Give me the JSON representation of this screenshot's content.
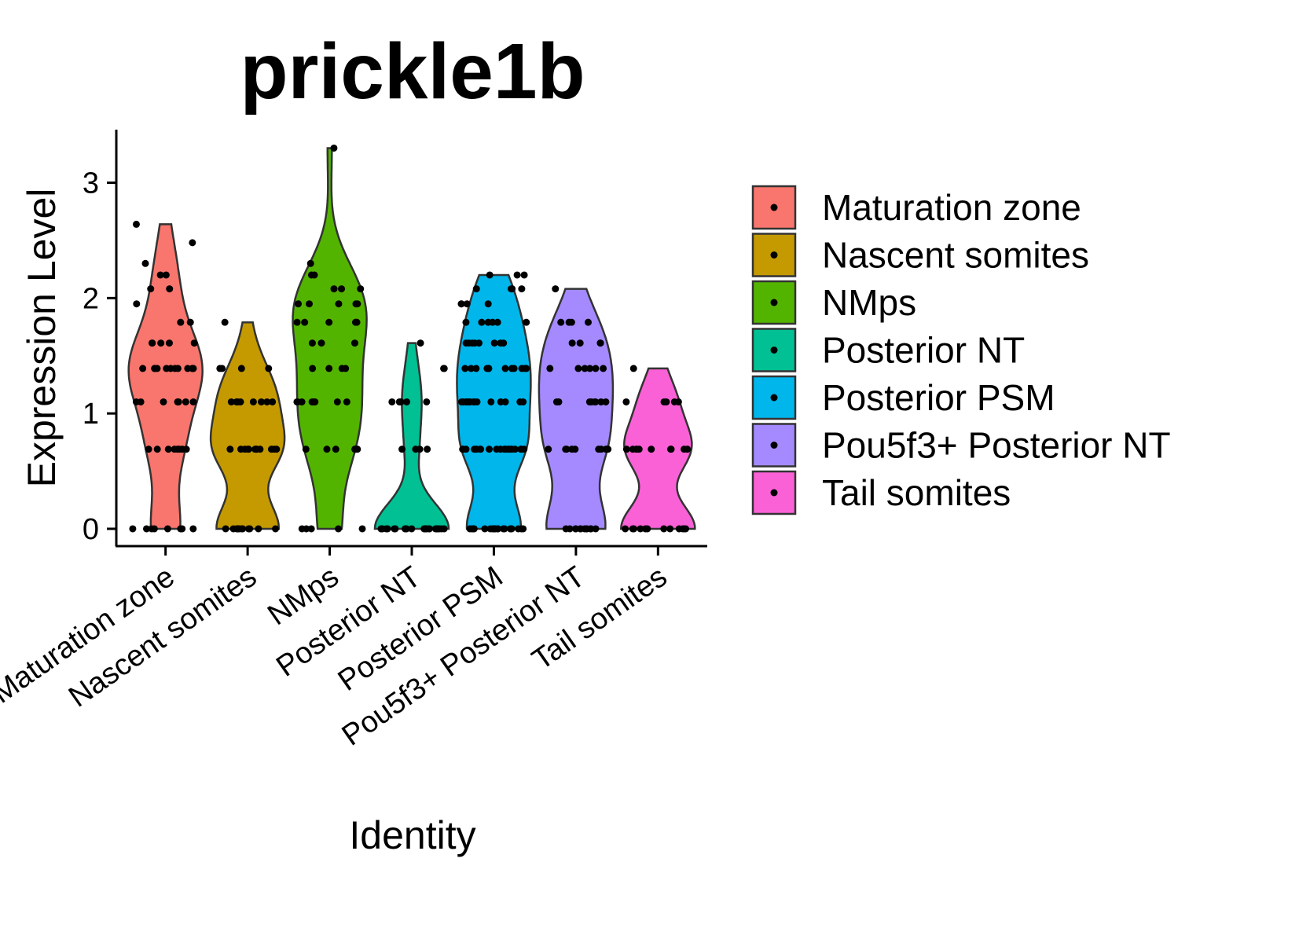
{
  "chart_data": {
    "type": "violin",
    "title": "prickle1b",
    "x_label": "Identity",
    "y_label": "Expression Level",
    "ylim": [
      -0.15,
      3.46
    ],
    "yticks": [
      0,
      1,
      2,
      3
    ],
    "legend": "right",
    "series": [
      {
        "name": "Maturation zone",
        "color": "#F8766D",
        "values": [
          0,
          0,
          0,
          0,
          0,
          0,
          0,
          0,
          0.69,
          0.69,
          0.69,
          0.69,
          0.69,
          0.69,
          0.69,
          0.69,
          1.1,
          1.1,
          1.1,
          1.1,
          1.1,
          1.1,
          1.1,
          1.39,
          1.39,
          1.39,
          1.39,
          1.39,
          1.39,
          1.39,
          1.39,
          1.39,
          1.39,
          1.39,
          1.39,
          1.61,
          1.61,
          1.61,
          1.61,
          1.61,
          1.79,
          1.79,
          1.95,
          2.08,
          2.08,
          2.2,
          2.2,
          2.3,
          2.48,
          2.64
        ]
      },
      {
        "name": "Nascent somites",
        "color": "#C49A00",
        "values": [
          0,
          0,
          0,
          0,
          0,
          0,
          0,
          0,
          0,
          0,
          0,
          0,
          0.69,
          0.69,
          0.69,
          0.69,
          0.69,
          0.69,
          0.69,
          0.69,
          0.69,
          0.69,
          0.69,
          0.69,
          1.1,
          1.1,
          1.1,
          1.1,
          1.1,
          1.1,
          1.1,
          1.1,
          1.39,
          1.39,
          1.39,
          1.39,
          1.79
        ]
      },
      {
        "name": "NMps",
        "color": "#53B400",
        "values": [
          0,
          0,
          0,
          0,
          0,
          0.69,
          0.69,
          0.69,
          0.69,
          0.69,
          0.69,
          0.69,
          0.69,
          1.1,
          1.1,
          1.1,
          1.1,
          1.1,
          1.1,
          1.1,
          1.1,
          1.39,
          1.39,
          1.39,
          1.39,
          1.61,
          1.61,
          1.61,
          1.79,
          1.79,
          1.79,
          1.79,
          1.79,
          1.95,
          1.95,
          1.95,
          1.95,
          1.95,
          2.08,
          2.08,
          2.08,
          2.2,
          2.2,
          2.3,
          3.3
        ]
      },
      {
        "name": "Posterior NT",
        "color": "#00C094",
        "values": [
          0,
          0,
          0,
          0,
          0,
          0,
          0,
          0,
          0,
          0,
          0,
          0,
          0,
          0,
          0,
          0,
          0,
          0,
          0,
          0,
          0,
          0,
          0,
          0,
          0,
          0.69,
          0.69,
          0.69,
          0.69,
          1.1,
          1.1,
          1.1,
          1.1,
          1.1,
          1.39,
          1.39,
          1.61
        ]
      },
      {
        "name": "Posterior PSM",
        "color": "#00B6EB",
        "values": [
          0,
          0,
          0,
          0,
          0,
          0,
          0,
          0,
          0,
          0,
          0,
          0,
          0,
          0,
          0,
          0,
          0,
          0,
          0,
          0,
          0.69,
          0.69,
          0.69,
          0.69,
          0.69,
          0.69,
          0.69,
          0.69,
          0.69,
          0.69,
          0.69,
          0.69,
          0.69,
          0.69,
          0.69,
          0.69,
          0.69,
          0.69,
          0.69,
          0.69,
          1.1,
          1.1,
          1.1,
          1.1,
          1.1,
          1.1,
          1.1,
          1.1,
          1.1,
          1.1,
          1.1,
          1.1,
          1.1,
          1.1,
          1.1,
          1.39,
          1.39,
          1.39,
          1.39,
          1.39,
          1.39,
          1.39,
          1.39,
          1.39,
          1.39,
          1.39,
          1.39,
          1.61,
          1.61,
          1.61,
          1.61,
          1.61,
          1.61,
          1.61,
          1.61,
          1.79,
          1.79,
          1.79,
          1.79,
          1.79,
          1.79,
          1.95,
          1.95,
          1.95,
          1.95,
          2.08,
          2.08,
          2.08,
          2.08,
          2.2,
          2.2,
          2.2
        ]
      },
      {
        "name": "Pou5f3+ Posterior NT",
        "color": "#A58AFF",
        "values": [
          0,
          0,
          0,
          0,
          0,
          0,
          0,
          0,
          0,
          0,
          0,
          0,
          0.69,
          0.69,
          0.69,
          0.69,
          0.69,
          0.69,
          0.69,
          0.69,
          0.69,
          0.69,
          1.1,
          1.1,
          1.1,
          1.1,
          1.1,
          1.1,
          1.1,
          1.1,
          1.39,
          1.39,
          1.39,
          1.39,
          1.39,
          1.39,
          1.61,
          1.61,
          1.61,
          1.61,
          1.79,
          1.79,
          1.79,
          1.79,
          2.08
        ]
      },
      {
        "name": "Tail somites",
        "color": "#FB61D7",
        "values": [
          0,
          0,
          0,
          0,
          0,
          0,
          0,
          0,
          0,
          0,
          0,
          0,
          0.69,
          0.69,
          0.69,
          0.69,
          0.69,
          0.69,
          0.69,
          0.69,
          0.69,
          0.69,
          1.1,
          1.1,
          1.1,
          1.1,
          1.1,
          1.39
        ]
      }
    ]
  }
}
